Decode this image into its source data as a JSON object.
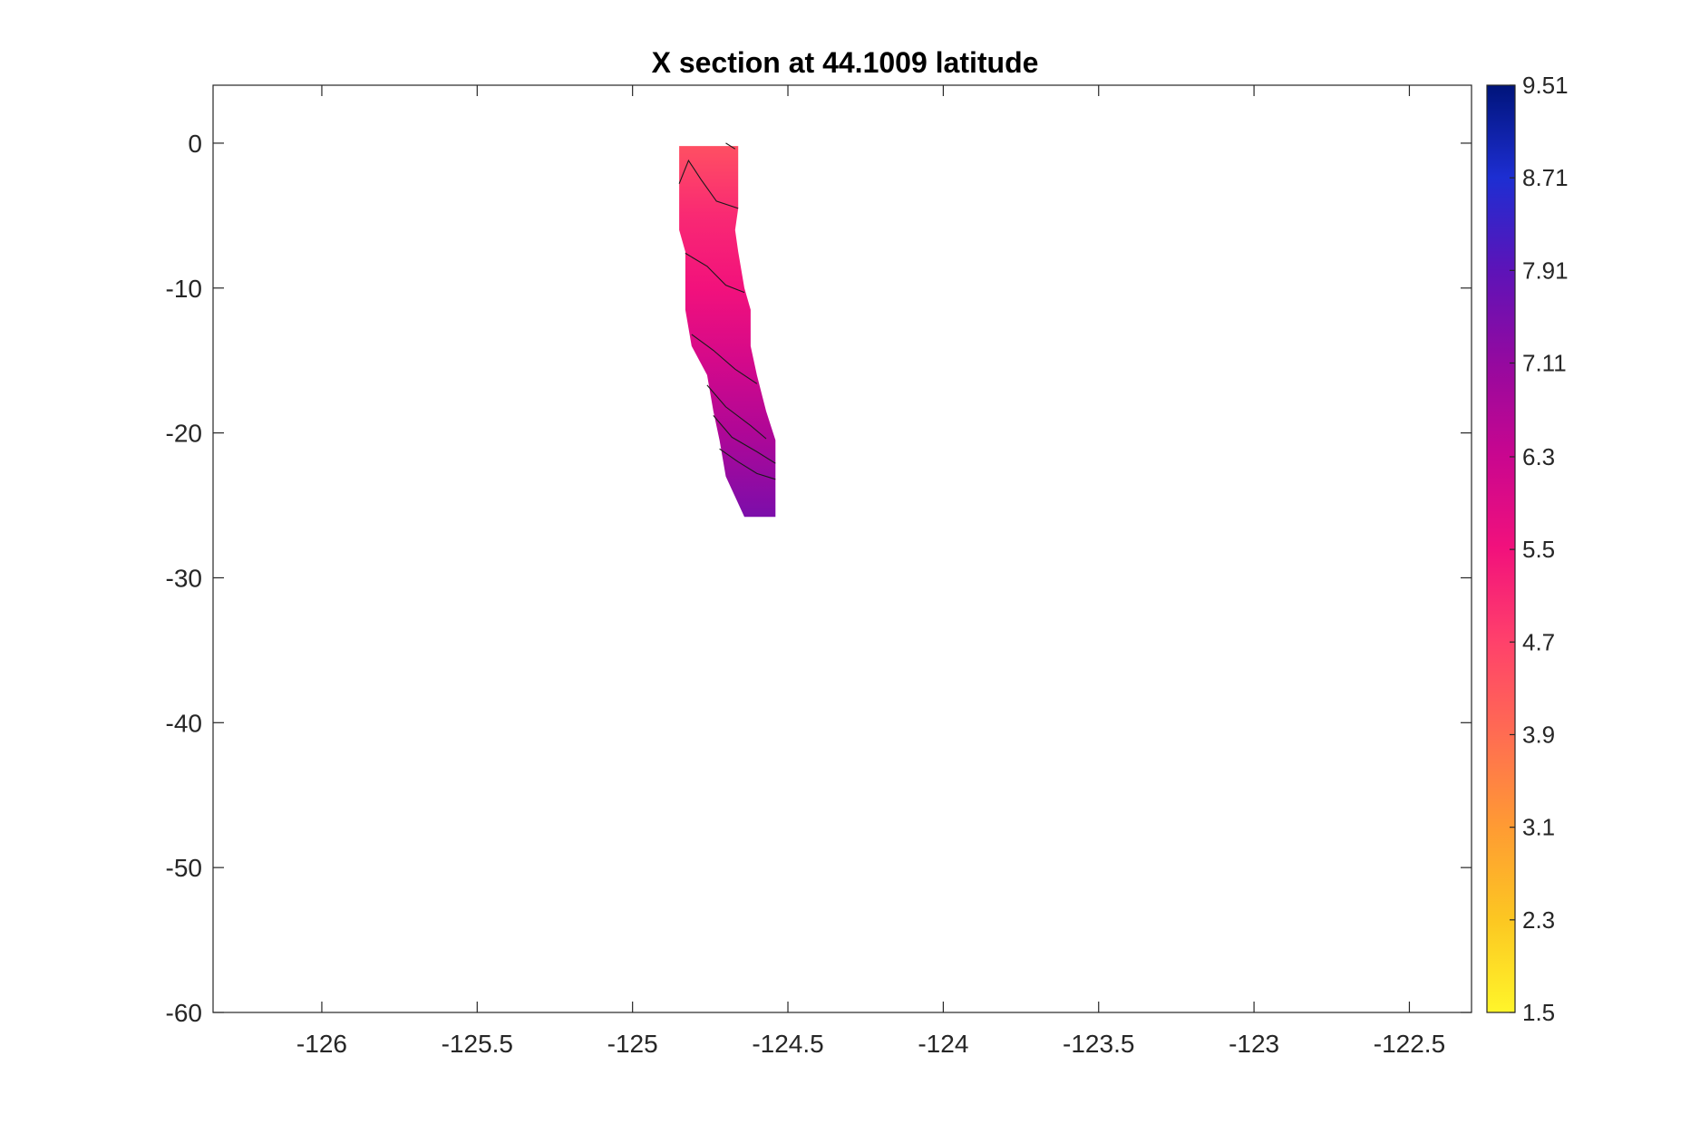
{
  "chart_data": {
    "type": "heatmap",
    "title": "X section at 44.1009 latitude",
    "xlabel": "",
    "ylabel": "",
    "xlim": [
      -126.35,
      -122.3
    ],
    "ylim": [
      -60,
      4
    ],
    "xticks": [
      -126,
      -125.5,
      -125,
      -124.5,
      -124,
      -123.5,
      -123,
      -122.5
    ],
    "xtick_labels": [
      "-126",
      "-125.5",
      "-125",
      "-124.5",
      "-124",
      "-123.5",
      "-123",
      "-122.5"
    ],
    "yticks": [
      0,
      -10,
      -20,
      -30,
      -40,
      -50,
      -60
    ],
    "ytick_labels": [
      "0",
      "-10",
      "-20",
      "-30",
      "-40",
      "-50",
      "-60"
    ],
    "grid": false,
    "colorbar": {
      "range": [
        1.5,
        9.51
      ],
      "ticks": [
        1.5,
        2.3,
        3.1,
        3.9,
        4.7,
        5.5,
        6.3,
        7.11,
        7.91,
        8.71,
        9.51
      ],
      "tick_labels": [
        "1.5",
        "2.3",
        "3.1",
        "3.9",
        "4.7",
        "5.5",
        "6.3",
        "7.11",
        "7.91",
        "8.71",
        "9.51"
      ],
      "colormap": [
        "#fff52a",
        "#fcc722",
        "#ff9b33",
        "#ff6c52",
        "#ff416b",
        "#f2117c",
        "#c9068f",
        "#95099f",
        "#5d13b8",
        "#1d2ed2",
        "#00147a"
      ]
    },
    "region": {
      "rows": [
        {
          "y": -0.2,
          "x0": -124.85,
          "x1": -124.66
        },
        {
          "y": -1.0,
          "x0": -124.85,
          "x1": -124.66
        },
        {
          "y": -4.5,
          "x0": -124.85,
          "x1": -124.66
        },
        {
          "y": -6.0,
          "x0": -124.85,
          "x1": -124.67
        },
        {
          "y": -7.5,
          "x0": -124.83,
          "x1": -124.66
        },
        {
          "y": -10.0,
          "x0": -124.83,
          "x1": -124.64
        },
        {
          "y": -11.5,
          "x0": -124.83,
          "x1": -124.62
        },
        {
          "y": -14.0,
          "x0": -124.81,
          "x1": -124.62
        },
        {
          "y": -16.0,
          "x0": -124.76,
          "x1": -124.6
        },
        {
          "y": -18.5,
          "x0": -124.74,
          "x1": -124.57
        },
        {
          "y": -20.5,
          "x0": -124.72,
          "x1": -124.54
        },
        {
          "y": -23.0,
          "x0": -124.7,
          "x1": -124.54
        },
        {
          "y": -25.8,
          "x0": -124.64,
          "x1": -124.54
        }
      ],
      "value_stops": [
        {
          "y": 0,
          "value": 4.4
        },
        {
          "y": -5,
          "value": 5.1
        },
        {
          "y": -10,
          "value": 5.5
        },
        {
          "y": -15,
          "value": 6.1
        },
        {
          "y": -20,
          "value": 6.7
        },
        {
          "y": -26,
          "value": 7.5
        }
      ],
      "contours": [
        [
          [
            -124.85,
            -2.8
          ],
          [
            -124.82,
            -1.2
          ],
          [
            -124.78,
            -2.5
          ],
          [
            -124.73,
            -4.0
          ],
          [
            -124.66,
            -4.5
          ]
        ],
        [
          [
            -124.83,
            -7.6
          ],
          [
            -124.76,
            -8.5
          ],
          [
            -124.7,
            -9.8
          ],
          [
            -124.64,
            -10.3
          ]
        ],
        [
          [
            -124.81,
            -13.2
          ],
          [
            -124.74,
            -14.3
          ],
          [
            -124.67,
            -15.6
          ],
          [
            -124.6,
            -16.6
          ]
        ],
        [
          [
            -124.76,
            -16.7
          ],
          [
            -124.7,
            -18.2
          ],
          [
            -124.62,
            -19.5
          ],
          [
            -124.57,
            -20.4
          ]
        ],
        [
          [
            -124.74,
            -18.8
          ],
          [
            -124.68,
            -20.3
          ],
          [
            -124.6,
            -21.3
          ],
          [
            -124.54,
            -22.1
          ]
        ],
        [
          [
            -124.72,
            -21.1
          ],
          [
            -124.66,
            -22.0
          ],
          [
            -124.6,
            -22.8
          ],
          [
            -124.54,
            -23.2
          ]
        ],
        [
          [
            -124.7,
            0.0
          ],
          [
            -124.67,
            -0.4
          ]
        ]
      ]
    }
  }
}
